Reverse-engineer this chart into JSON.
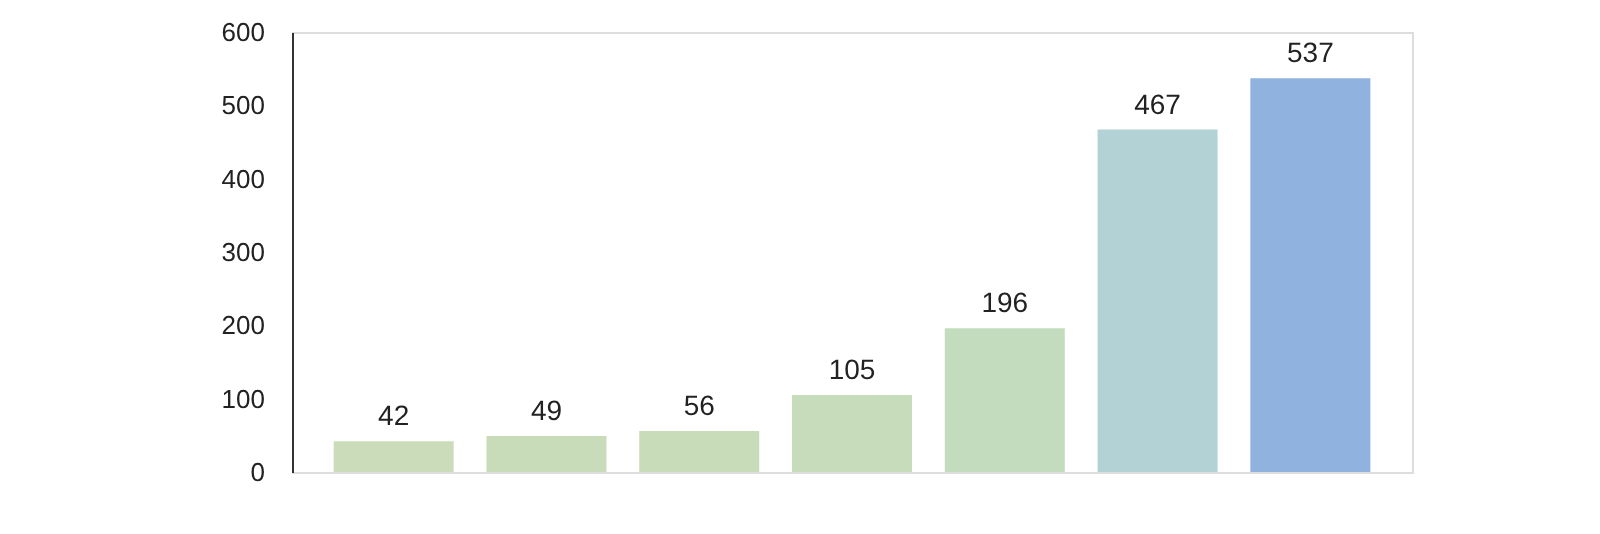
{
  "chart_data": {
    "type": "bar",
    "categories": [
      null,
      null,
      null,
      null,
      null,
      null,
      null
    ],
    "values": [
      42,
      49,
      56,
      105,
      196,
      467,
      537
    ],
    "colors": [
      "#cadcba",
      "#c9dcba",
      "#c8dcba",
      "#c6dcba",
      "#c3dcbd",
      "#b3d2d6",
      "#8fb2df"
    ],
    "ylim": [
      0,
      600
    ],
    "yticks": [
      0,
      100,
      200,
      300,
      400,
      500,
      600
    ],
    "grid": false,
    "data_labels": true
  }
}
